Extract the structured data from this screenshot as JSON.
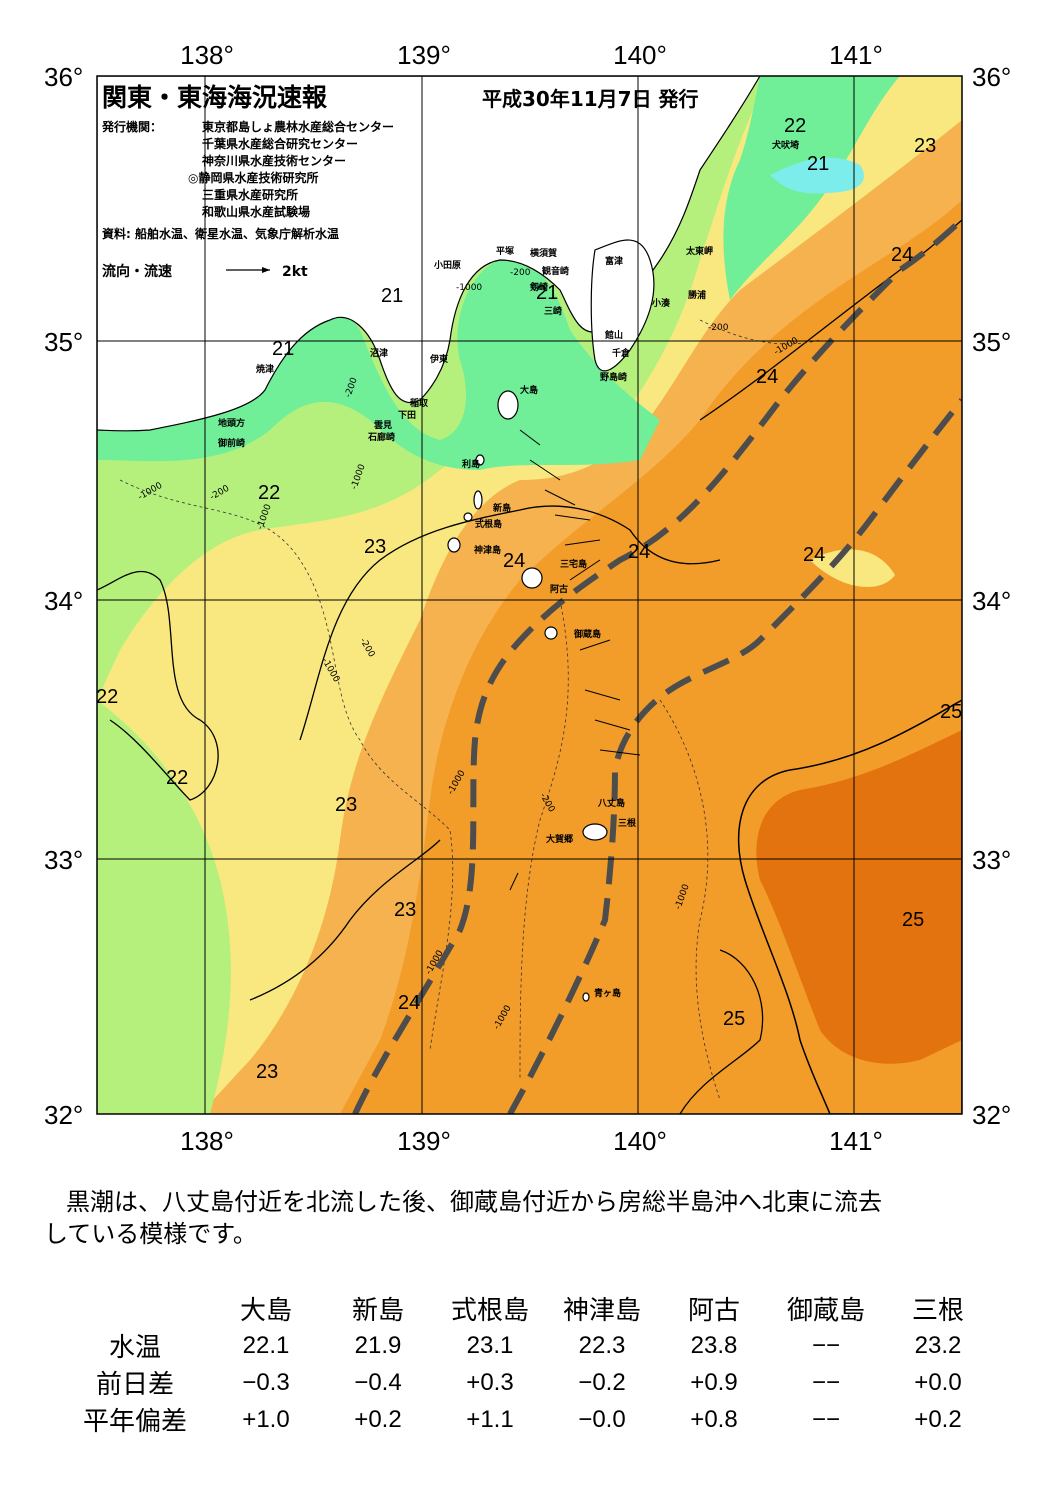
{
  "header": {
    "title": "関東・東海海況速報",
    "issue_date": "平成30年11月7日 発行",
    "issuers_label": "発行機関：",
    "issuers": [
      "東京都島しょ農林水産総合センター",
      "千葉県水産総合研究センター",
      "神奈川県水産技術センター",
      "◎静岡県水産技術研究所",
      "三重県水産研究所",
      "和歌山県水産試験場"
    ],
    "sources": "資料: 船舶水温、衛星水温、気象庁解析水温",
    "current_legend": "流向・流速",
    "current_scale": "2kt"
  },
  "axes": {
    "lon_labels": [
      "138°",
      "139°",
      "140°",
      "141°"
    ],
    "lat_labels": [
      "36°",
      "35°",
      "34°",
      "33°",
      "32°"
    ]
  },
  "place_names": [
    "大島",
    "利島",
    "新島",
    "式根島",
    "神津島",
    "三宅島",
    "阿古",
    "御蔵島",
    "八丈島",
    "三根",
    "大賀郷",
    "青ヶ島",
    "小田原",
    "平塚",
    "横須賀",
    "観音崎",
    "剱崎",
    "三崎",
    "富津",
    "館山",
    "千倉",
    "野島崎",
    "太東岬",
    "勝浦",
    "小湊",
    "犬吠埼",
    "沼津",
    "伊東",
    "稲取",
    "下田",
    "雲見",
    "石廊崎",
    "焼津",
    "地頭方",
    "御前崎"
  ],
  "contour_labels": [
    "22",
    "21",
    "23",
    "21",
    "21",
    "21",
    "22",
    "23",
    "24",
    "24",
    "24",
    "24",
    "24",
    "22",
    "22",
    "23",
    "23",
    "23",
    "24",
    "23",
    "25",
    "25",
    "25"
  ],
  "depth_labels": [
    "-200",
    "-1000",
    "-200",
    "-1000",
    "-200",
    "-1000",
    "-200",
    "-1000",
    "-1000",
    "-1000",
    "-200",
    "-1000",
    "-1000",
    "-200",
    "-1000",
    "-1000"
  ],
  "colors": {
    "t21": "#70ee98",
    "t22": "#b5f07d",
    "t23": "#f9e880",
    "t24": "#f5b24e",
    "t25": "#f29c2a",
    "t26": "#e3730f",
    "cold": "#7dedec",
    "kuroshio_axis": "#4d4d4d"
  },
  "description": [
    "黒潮は、八丈島付近を北流した後、御蔵島付近から房総半島沖へ北東に流去",
    "している模様です。"
  ],
  "stations_table": {
    "headers": [
      "大島",
      "新島",
      "式根島",
      "神津島",
      "阿古",
      "御蔵島",
      "三根"
    ],
    "rows": [
      {
        "label": "水温",
        "values": [
          "22.1",
          "21.9",
          "23.1",
          "22.3",
          "23.8",
          "−−",
          "23.2"
        ]
      },
      {
        "label": "前日差",
        "values": [
          "−0.3",
          "−0.4",
          "+0.3",
          "−0.2",
          "+0.9",
          "−−",
          "+0.0"
        ]
      },
      {
        "label": "平年偏差",
        "values": [
          "+1.0",
          "+0.2",
          "+1.1",
          "−0.0",
          "+0.8",
          "−−",
          "+0.2"
        ]
      }
    ]
  }
}
